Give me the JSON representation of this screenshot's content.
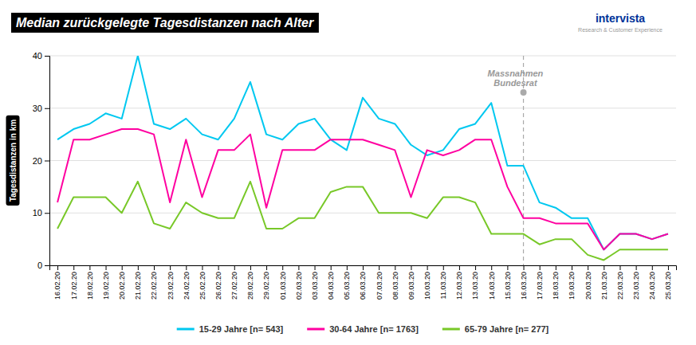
{
  "chart_data": {
    "type": "line",
    "title": "Median zurückgelegte Tagesdistanzen nach Alter",
    "ylabel": "Tagesdistanzen in km",
    "categories": [
      "16.02.20",
      "17.02.20",
      "18.02.20",
      "19.02.20",
      "20.02.20",
      "21.02.20",
      "22.02.20",
      "23.02.20",
      "24.02.20",
      "25.02.20",
      "26.02.20",
      "27.02.20",
      "28.02.20",
      "29.02.20",
      "01.03.20",
      "02.03.20",
      "03.03.20",
      "04.03.20",
      "05.03.20",
      "06.03.20",
      "07.03.20",
      "08.03.20",
      "09.03.20",
      "10.03.20",
      "11.03.20",
      "12.03.20",
      "13.03.20",
      "14.03.20",
      "15.03.20",
      "16.03.20",
      "17.03.20",
      "18.03.20",
      "19.03.20",
      "20.03.20",
      "21.03.20",
      "22.03.20",
      "23.03.20",
      "24.03.20",
      "25.03.20"
    ],
    "series": [
      {
        "name": "15-29 Jahre [n= 543]",
        "color": "#00c8f0",
        "values": [
          24,
          26,
          27,
          29,
          28,
          40,
          27,
          26,
          28,
          25,
          24,
          28,
          35,
          25,
          24,
          27,
          28,
          24,
          22,
          32,
          28,
          27,
          23,
          21,
          22,
          26,
          27,
          31,
          19,
          19,
          12,
          11,
          9,
          9,
          3,
          6,
          6,
          5,
          6
        ]
      },
      {
        "name": "30-64 Jahre [n= 1763]",
        "color": "#ff00a0",
        "values": [
          12,
          24,
          24,
          25,
          26,
          26,
          25,
          12,
          24,
          13,
          22,
          22,
          25,
          11,
          22,
          22,
          22,
          24,
          24,
          24,
          23,
          22,
          13,
          22,
          21,
          22,
          24,
          24,
          15,
          9,
          9,
          8,
          8,
          8,
          3,
          6,
          6,
          5,
          6
        ]
      },
      {
        "name": "65-79 Jahre [n= 277]",
        "color": "#78c828",
        "values": [
          7,
          13,
          13,
          13,
          10,
          16,
          8,
          7,
          12,
          10,
          9,
          9,
          16,
          7,
          7,
          9,
          9,
          14,
          15,
          15,
          10,
          10,
          10,
          9,
          13,
          13,
          12,
          6,
          6,
          6,
          4,
          5,
          5,
          2,
          1,
          3,
          3,
          3,
          3
        ]
      }
    ],
    "annotations": [
      {
        "x": "16.03.20",
        "y": 33,
        "text": [
          "Massnahmen",
          "Bundesrat"
        ]
      },
      {
        "text": "intervista",
        "color": "#003399"
      },
      {
        "text": "Research & Customer Experience"
      }
    ],
    "ylim": [
      0,
      40
    ],
    "yticks": [
      0,
      10,
      20,
      30,
      40
    ],
    "grid": true,
    "legend": "bottom"
  }
}
